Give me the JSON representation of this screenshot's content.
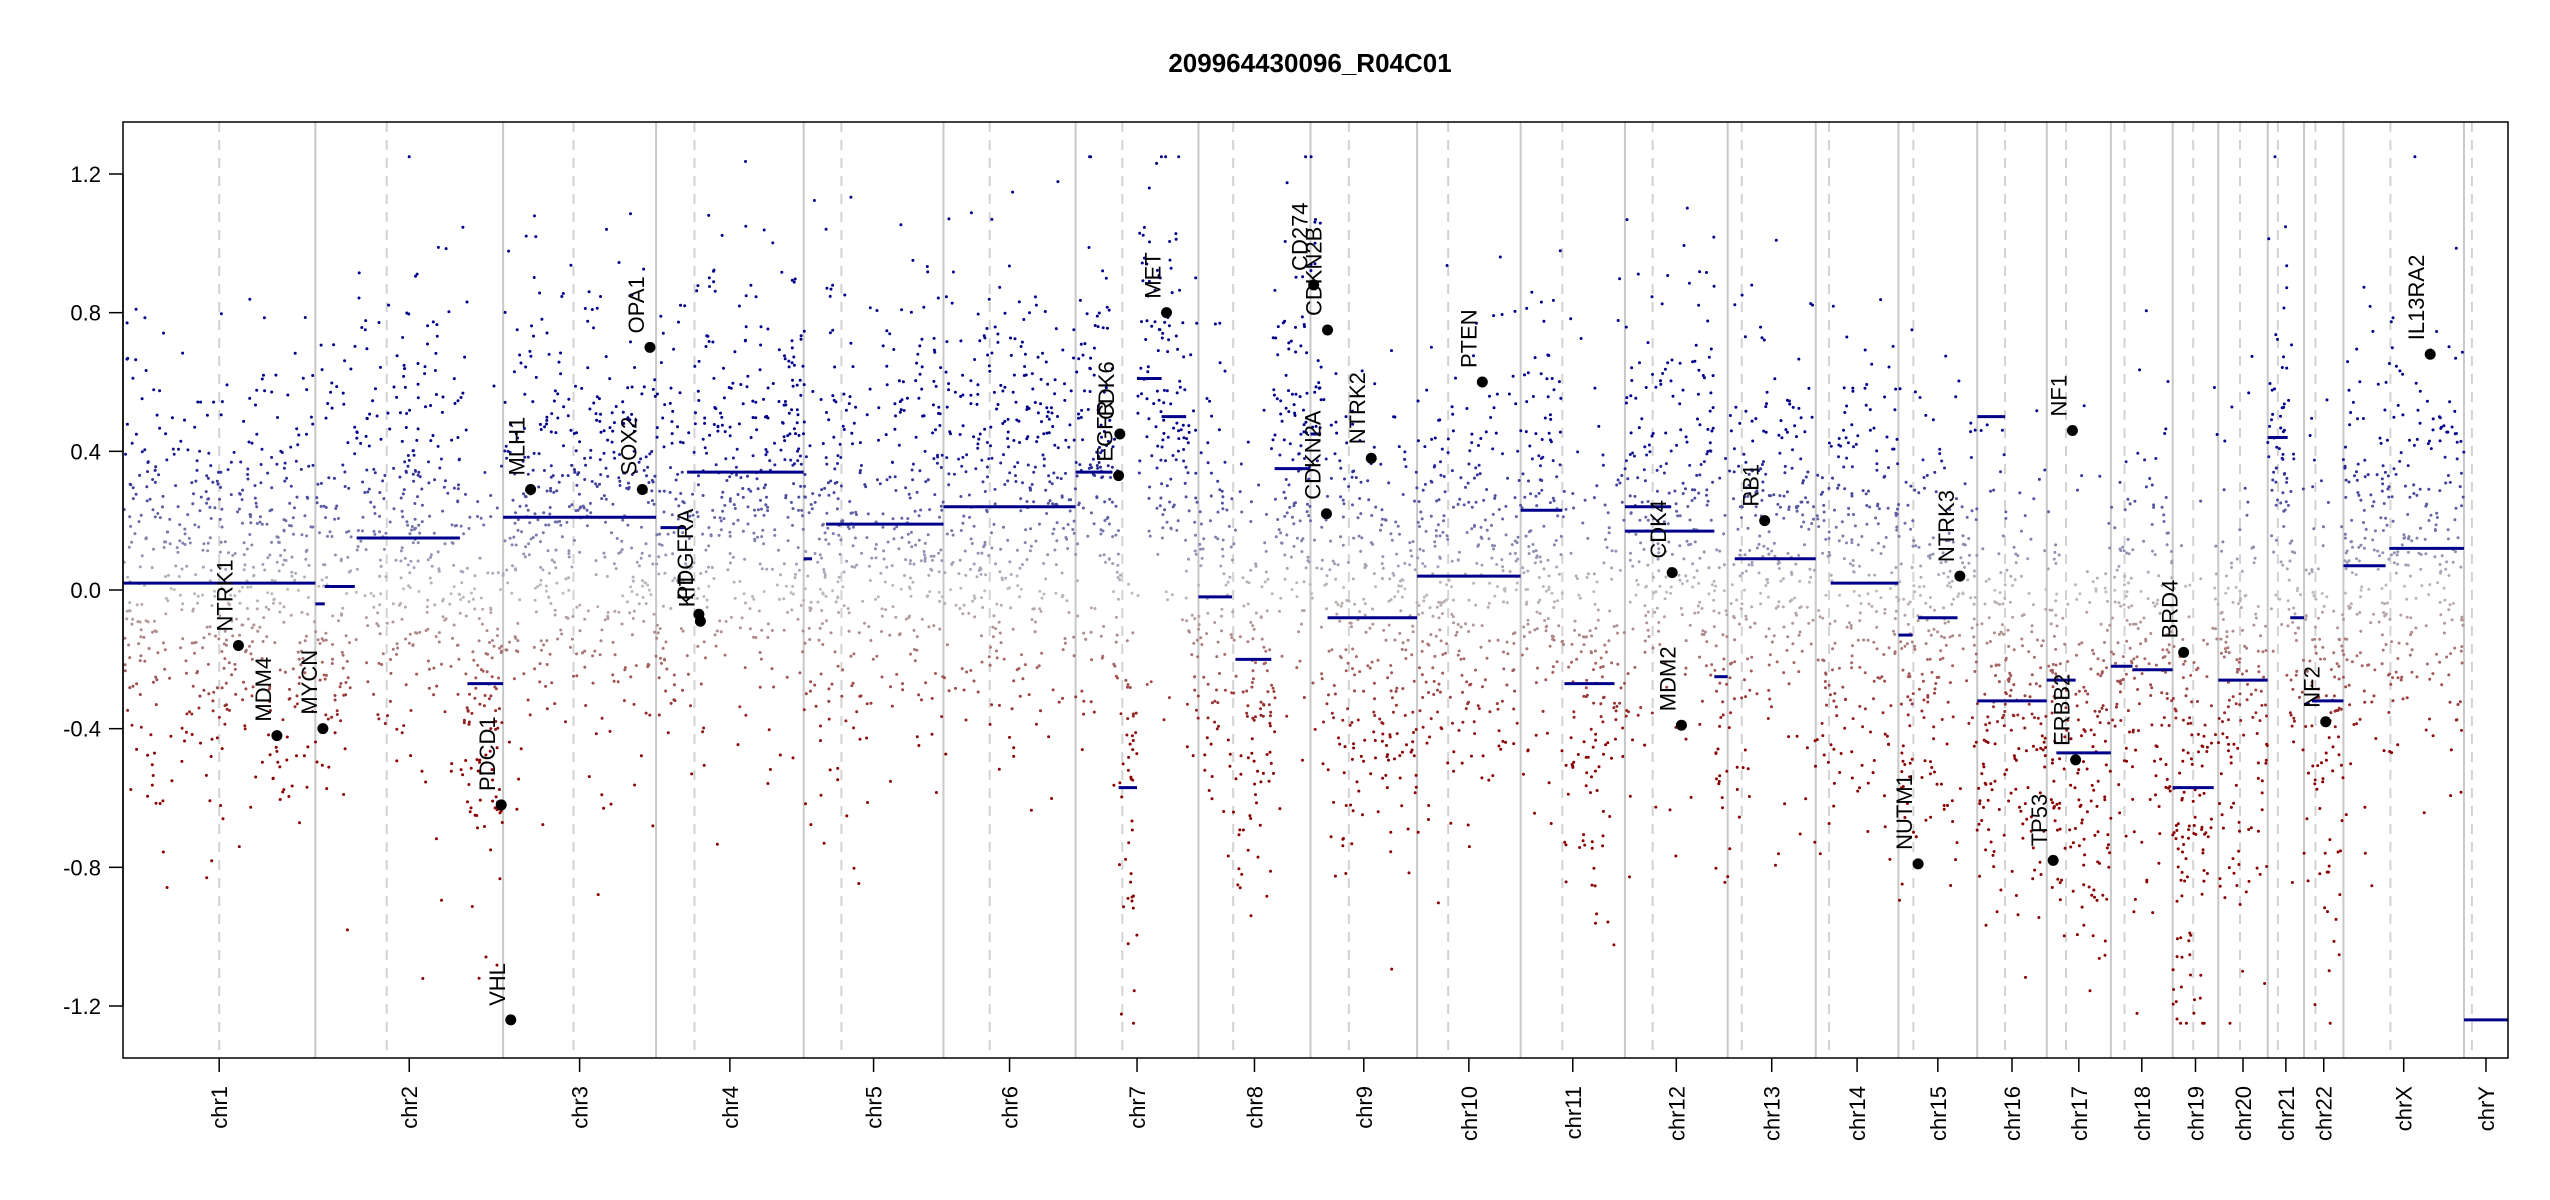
{
  "chart_data": {
    "type": "scatter",
    "title": "209964430096_R04C01",
    "xlabel": "",
    "ylabel": "",
    "ylim": [
      -1.35,
      1.35
    ],
    "yticks": [
      {
        "value": -1.2,
        "label": "-1.2"
      },
      {
        "value": -0.8,
        "label": "-0.8"
      },
      {
        "value": -0.4,
        "label": "-0.4"
      },
      {
        "value": 0.0,
        "label": "0.0"
      },
      {
        "value": 0.4,
        "label": "0.4"
      },
      {
        "value": 0.8,
        "label": "0.8"
      },
      {
        "value": 1.2,
        "label": "1.2"
      }
    ],
    "grid": false,
    "colors": {
      "gain": "#00008B",
      "loss": "#8B0000",
      "neutral": "#BEBEBE",
      "segment": "#00008B",
      "gene": "#000000",
      "border": "#C8C8C8",
      "centromere": "#D3D3D3"
    },
    "chromosomes": [
      {
        "name": "chr1",
        "size": 249,
        "centromere": 0.5
      },
      {
        "name": "chr2",
        "size": 243,
        "centromere": 0.38
      },
      {
        "name": "chr3",
        "size": 198,
        "centromere": 0.46
      },
      {
        "name": "chr4",
        "size": 191,
        "centromere": 0.26
      },
      {
        "name": "chr5",
        "size": 181,
        "centromere": 0.27
      },
      {
        "name": "chr6",
        "size": 171,
        "centromere": 0.35
      },
      {
        "name": "chr7",
        "size": 159,
        "centromere": 0.38
      },
      {
        "name": "chr8",
        "size": 145,
        "centromere": 0.31
      },
      {
        "name": "chr9",
        "size": 138,
        "centromere": 0.36
      },
      {
        "name": "chr10",
        "size": 134,
        "centromere": 0.3
      },
      {
        "name": "chr11",
        "size": 135,
        "centromere": 0.4
      },
      {
        "name": "chr12",
        "size": 133,
        "centromere": 0.27
      },
      {
        "name": "chr13",
        "size": 114,
        "centromere": 0.16
      },
      {
        "name": "chr14",
        "size": 107,
        "centromere": 0.16
      },
      {
        "name": "chr15",
        "size": 102,
        "centromere": 0.19
      },
      {
        "name": "chr16",
        "size": 90,
        "centromere": 0.4
      },
      {
        "name": "chr17",
        "size": 83,
        "centromere": 0.3
      },
      {
        "name": "chr18",
        "size": 80,
        "centromere": 0.22
      },
      {
        "name": "chr19",
        "size": 59,
        "centromere": 0.45
      },
      {
        "name": "chr20",
        "size": 64,
        "centromere": 0.44
      },
      {
        "name": "chr21",
        "size": 47,
        "centromere": 0.28
      },
      {
        "name": "chr22",
        "size": 51,
        "centromere": 0.29
      },
      {
        "name": "chrX",
        "size": 156,
        "centromere": 0.39
      },
      {
        "name": "chrY",
        "size": 57,
        "centromere": 0.18
      }
    ],
    "segments": [
      {
        "chr": "chr1",
        "from": 0.0,
        "to": 1.0,
        "value": 0.02
      },
      {
        "chr": "chr2",
        "from": 0.0,
        "to": 0.05,
        "value": -0.04
      },
      {
        "chr": "chr2",
        "from": 0.05,
        "to": 0.21,
        "value": 0.01
      },
      {
        "chr": "chr2",
        "from": 0.0,
        "to": 0.0,
        "value": 0.0
      },
      {
        "chr": "chr2",
        "from": 0.22,
        "to": 0.77,
        "value": 0.15
      },
      {
        "chr": "chr2",
        "from": 0.81,
        "to": 1.0,
        "value": -0.27
      },
      {
        "chr": "chr3",
        "from": 0.0,
        "to": 1.0,
        "value": 0.21
      },
      {
        "chr": "chr4",
        "from": 0.03,
        "to": 0.2,
        "value": 0.18
      },
      {
        "chr": "chr4",
        "from": 0.21,
        "to": 1.0,
        "value": 0.34
      },
      {
        "chr": "chr5",
        "from": 0.0,
        "to": 0.06,
        "value": 0.09
      },
      {
        "chr": "chr5",
        "from": 0.16,
        "to": 1.0,
        "value": 0.19
      },
      {
        "chr": "chr6",
        "from": 0.0,
        "to": 1.0,
        "value": 0.24
      },
      {
        "chr": "chr7",
        "from": 0.0,
        "to": 0.3,
        "value": 0.34
      },
      {
        "chr": "chr7",
        "from": 0.35,
        "to": 0.5,
        "value": -0.57
      },
      {
        "chr": "chr7",
        "from": 0.5,
        "to": 0.7,
        "value": 0.61
      },
      {
        "chr": "chr7",
        "from": 0.7,
        "to": 0.9,
        "value": 0.5
      },
      {
        "chr": "chr8",
        "from": 0.0,
        "to": 0.3,
        "value": -0.02
      },
      {
        "chr": "chr8",
        "from": 0.33,
        "to": 0.65,
        "value": -0.2
      },
      {
        "chr": "chr8",
        "from": 0.68,
        "to": 1.0,
        "value": 0.35
      },
      {
        "chr": "chr9",
        "from": 0.0,
        "to": 0.1,
        "value": 0.45
      },
      {
        "chr": "chr9",
        "from": 0.16,
        "to": 1.0,
        "value": -0.08
      },
      {
        "chr": "chr10",
        "from": 0.0,
        "to": 1.0,
        "value": 0.04
      },
      {
        "chr": "chr11",
        "from": 0.0,
        "to": 0.4,
        "value": 0.23
      },
      {
        "chr": "chr11",
        "from": 0.42,
        "to": 0.9,
        "value": -0.27
      },
      {
        "chr": "chr12",
        "from": 0.0,
        "to": 0.45,
        "value": 0.24
      },
      {
        "chr": "chr12",
        "from": 0.0,
        "to": 0.87,
        "value": 0.17
      },
      {
        "chr": "chr12",
        "from": 0.87,
        "to": 1.0,
        "value": -0.25
      },
      {
        "chr": "chr13",
        "from": 0.08,
        "to": 1.0,
        "value": 0.09
      },
      {
        "chr": "chr14",
        "from": 0.18,
        "to": 1.0,
        "value": 0.02
      },
      {
        "chr": "chr15",
        "from": 0.0,
        "to": 0.18,
        "value": -0.13
      },
      {
        "chr": "chr15",
        "from": 0.25,
        "to": 0.75,
        "value": -0.08
      },
      {
        "chr": "chr16",
        "from": 0.0,
        "to": 0.4,
        "value": 0.5
      },
      {
        "chr": "chr16",
        "from": 0.0,
        "to": 1.0,
        "value": -0.32
      },
      {
        "chr": "chr17",
        "from": 0.0,
        "to": 0.45,
        "value": -0.26
      },
      {
        "chr": "chr17",
        "from": 0.15,
        "to": 1.0,
        "value": -0.47
      },
      {
        "chr": "chr18",
        "from": 0.0,
        "to": 0.35,
        "value": -0.22
      },
      {
        "chr": "chr18",
        "from": 0.35,
        "to": 1.0,
        "value": -0.23
      },
      {
        "chr": "chr19",
        "from": 0.0,
        "to": 0.9,
        "value": -0.57
      },
      {
        "chr": "chr20",
        "from": 0.0,
        "to": 1.0,
        "value": -0.26
      },
      {
        "chr": "chr21",
        "from": 0.0,
        "to": 0.55,
        "value": 0.44
      },
      {
        "chr": "chr21",
        "from": 0.62,
        "to": 1.0,
        "value": -0.08
      },
      {
        "chr": "chr22",
        "from": 0.0,
        "to": 0.15,
        "value": -0.33
      },
      {
        "chr": "chr22",
        "from": 0.2,
        "to": 1.0,
        "value": -0.32
      },
      {
        "chr": "chrX",
        "from": 0.0,
        "to": 0.35,
        "value": 0.07
      },
      {
        "chr": "chrX",
        "from": 0.38,
        "to": 1.0,
        "value": 0.12
      },
      {
        "chr": "chrY",
        "from": 0.0,
        "to": 1.0,
        "value": -1.24
      }
    ],
    "genes": [
      {
        "name": "NTRK1",
        "chr": "chr1",
        "pos": 0.6,
        "value": -0.16
      },
      {
        "name": "MDM4",
        "chr": "chr1",
        "pos": 0.8,
        "value": -0.42
      },
      {
        "name": "MYCN",
        "chr": "chr2",
        "pos": 0.04,
        "value": -0.4
      },
      {
        "name": "PDCD1",
        "chr": "chr2",
        "pos": 0.99,
        "value": -0.62
      },
      {
        "name": "VHL",
        "chr": "chr3",
        "pos": 0.05,
        "value": -1.24
      },
      {
        "name": "MLH1",
        "chr": "chr3",
        "pos": 0.18,
        "value": 0.29
      },
      {
        "name": "SOX2",
        "chr": "chr3",
        "pos": 0.91,
        "value": 0.29
      },
      {
        "name": "OPA1",
        "chr": "chr3",
        "pos": 0.96,
        "value": 0.7
      },
      {
        "name": "PDGFRA",
        "chr": "chr4",
        "pos": 0.29,
        "value": -0.07
      },
      {
        "name": "KIT",
        "chr": "chr4",
        "pos": 0.3,
        "value": -0.09
      },
      {
        "name": "EGFR",
        "chr": "chr7",
        "pos": 0.35,
        "value": 0.33
      },
      {
        "name": "CDK6",
        "chr": "chr7",
        "pos": 0.36,
        "value": 0.45
      },
      {
        "name": "MET",
        "chr": "chr7",
        "pos": 0.74,
        "value": 0.8
      },
      {
        "name": "CD274",
        "chr": "chr9",
        "pos": 0.03,
        "value": 0.88
      },
      {
        "name": "CDKN2A",
        "chr": "chr9",
        "pos": 0.15,
        "value": 0.22
      },
      {
        "name": "CDKN2B",
        "chr": "chr9",
        "pos": 0.16,
        "value": 0.75
      },
      {
        "name": "NTRK2",
        "chr": "chr9",
        "pos": 0.57,
        "value": 0.38
      },
      {
        "name": "PTEN",
        "chr": "chr10",
        "pos": 0.63,
        "value": 0.6
      },
      {
        "name": "CDK4",
        "chr": "chr12",
        "pos": 0.46,
        "value": 0.05
      },
      {
        "name": "MDM2",
        "chr": "chr12",
        "pos": 0.55,
        "value": -0.39
      },
      {
        "name": "RB1",
        "chr": "chr13",
        "pos": 0.42,
        "value": 0.2
      },
      {
        "name": "NUTM1",
        "chr": "chr15",
        "pos": 0.25,
        "value": -0.79
      },
      {
        "name": "NTRK3",
        "chr": "chr15",
        "pos": 0.78,
        "value": 0.04
      },
      {
        "name": "TP53",
        "chr": "chr17",
        "pos": 0.1,
        "value": -0.78
      },
      {
        "name": "NF1",
        "chr": "chr17",
        "pos": 0.4,
        "value": 0.46
      },
      {
        "name": "ERBB2",
        "chr": "chr17",
        "pos": 0.45,
        "value": -0.49
      },
      {
        "name": "BRD4",
        "chr": "chr19",
        "pos": 0.24,
        "value": -0.18
      },
      {
        "name": "NF2",
        "chr": "chr22",
        "pos": 0.55,
        "value": -0.38
      },
      {
        "name": "IL13RA2",
        "chr": "chrX",
        "pos": 0.72,
        "value": 0.68
      }
    ],
    "probe_density_per_mb": 2.2,
    "probe_noise_sd": 0.33
  }
}
